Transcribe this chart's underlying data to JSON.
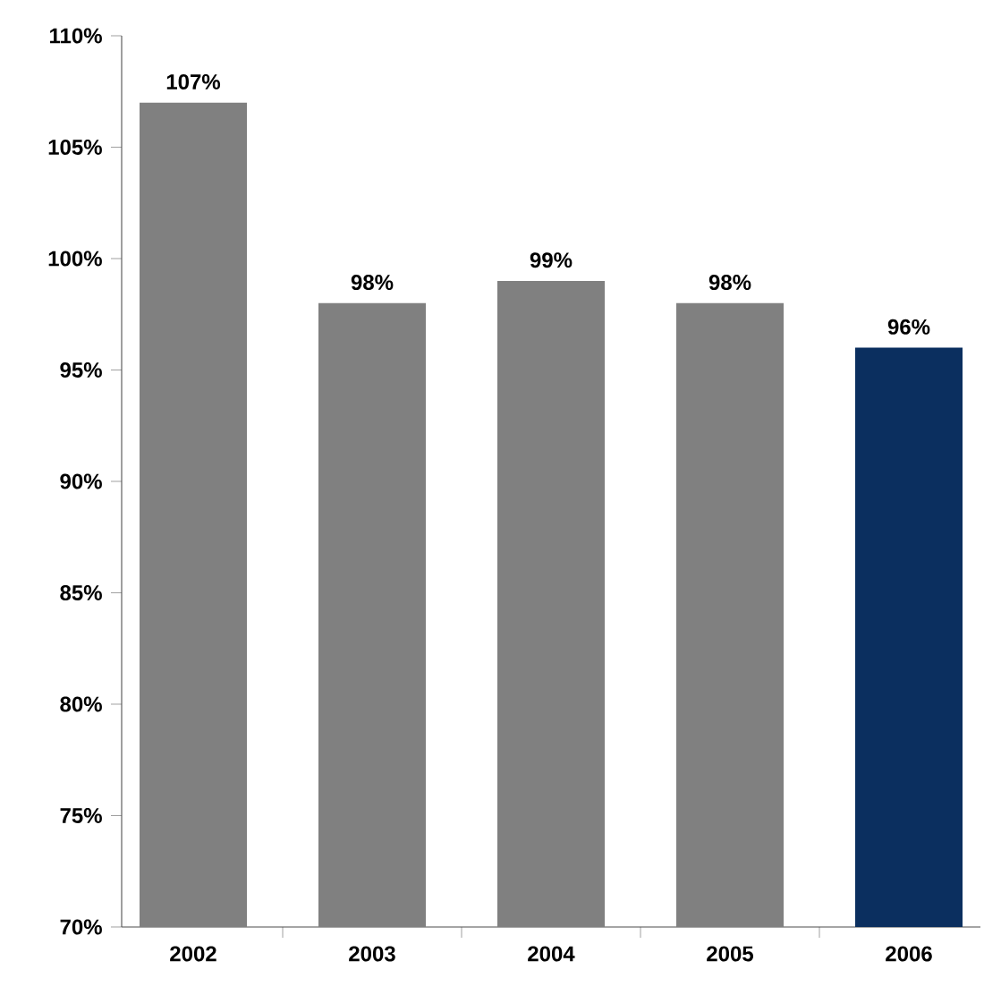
{
  "chart_data": {
    "type": "bar",
    "categories": [
      "2002",
      "2003",
      "2004",
      "2005",
      "2006"
    ],
    "values": [
      107,
      98,
      99,
      98,
      96
    ],
    "colors": [
      "#808080",
      "#808080",
      "#808080",
      "#808080",
      "#0b2f5f"
    ],
    "value_labels": [
      "107%",
      "98%",
      "99%",
      "98%",
      "96%"
    ],
    "ylim": [
      70,
      110
    ],
    "yticks": [
      {
        "value": 70,
        "label": "70%"
      },
      {
        "value": 75,
        "label": "75%"
      },
      {
        "value": 80,
        "label": "80%"
      },
      {
        "value": 85,
        "label": "85%"
      },
      {
        "value": 90,
        "label": "90%"
      },
      {
        "value": 95,
        "label": "95%"
      },
      {
        "value": 100,
        "label": "100%"
      },
      {
        "value": 105,
        "label": "105%"
      },
      {
        "value": 110,
        "label": "110%"
      }
    ],
    "grid": false
  }
}
